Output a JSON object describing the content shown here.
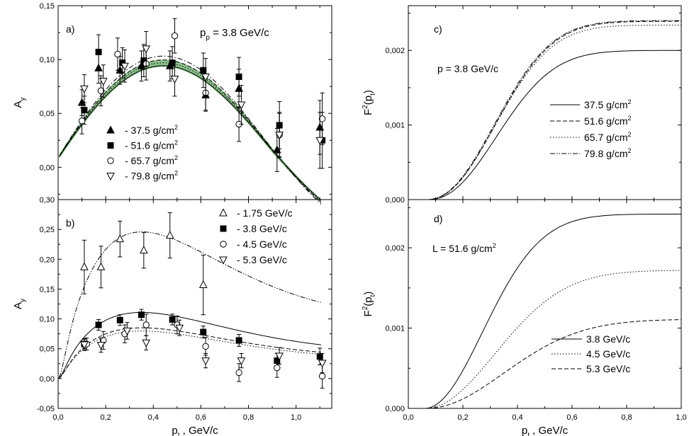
{
  "chart_data": [
    {
      "id": "a",
      "type": "scatter",
      "panel_label": "a)",
      "annotation": "p",
      "annotation_sub": "p",
      "annotation_tail": " = 3.8 GeV/c",
      "ylabel": "A",
      "ylabel_sub": "y",
      "xlim": [
        0.0,
        1.15
      ],
      "ylim": [
        -0.03,
        0.15
      ],
      "yticks": [
        0.0,
        0.05,
        0.1,
        0.15
      ],
      "ytick_labels": [
        "0,00",
        "0,05",
        "0,10",
        "0,15"
      ],
      "legend_position": "bottom-left",
      "series": [
        {
          "name": "- 37.5 g/cm",
          "name_sup": "2",
          "marker": "triangle-up-filled",
          "x": [
            0.1,
            0.17,
            0.26,
            0.35,
            0.47,
            0.62,
            0.76,
            0.92,
            1.1
          ],
          "y": [
            0.06,
            0.092,
            0.09,
            0.094,
            0.094,
            0.067,
            0.073,
            0.016,
            0.037
          ],
          "err": [
            0.012,
            0.014,
            0.013,
            0.014,
            0.014,
            0.015,
            0.018,
            0.02,
            0.025
          ]
        },
        {
          "name": "- 51.6 g/cm",
          "name_sup": "2",
          "marker": "square-filled",
          "x": [
            0.11,
            0.17,
            0.27,
            0.36,
            0.48,
            0.61,
            0.76,
            0.93,
            1.11
          ],
          "y": [
            0.053,
            0.107,
            0.097,
            0.099,
            0.097,
            0.09,
            0.084,
            0.039,
            0.025
          ],
          "err": [
            0.013,
            0.016,
            0.014,
            0.015,
            0.015,
            0.016,
            0.018,
            0.022,
            0.026
          ]
        },
        {
          "name": "- 65.7 g/cm",
          "name_sup": "2",
          "marker": "circle-open",
          "x": [
            0.1,
            0.18,
            0.25,
            0.37,
            0.49,
            0.62,
            0.76,
            0.93,
            1.11
          ],
          "y": [
            0.043,
            0.071,
            0.105,
            0.096,
            0.122,
            0.069,
            0.04,
            0.03,
            0.045
          ],
          "err": [
            0.012,
            0.014,
            0.015,
            0.015,
            0.016,
            0.016,
            0.016,
            0.02,
            0.024
          ]
        },
        {
          "name": "- 79.8 g/cm",
          "name_sup": "2",
          "marker": "triangle-down-open",
          "x": [
            0.11,
            0.19,
            0.28,
            0.37,
            0.49,
            0.62,
            0.77,
            0.93,
            1.1
          ],
          "y": [
            0.073,
            0.08,
            0.094,
            0.11,
            0.082,
            0.084,
            0.058,
            0.03,
            0.025
          ],
          "err": [
            0.013,
            0.015,
            0.015,
            0.016,
            0.016,
            0.017,
            0.018,
            0.021,
            0.026
          ]
        }
      ],
      "curves": [
        {
          "style": "solid",
          "amp": 0.1
        },
        {
          "style": "dashed",
          "amp": 0.106
        },
        {
          "style": "dotted",
          "amp": 0.103
        },
        {
          "style": "dashdot",
          "amp": 0.11
        }
      ],
      "band_color": "#2e8b2e"
    },
    {
      "id": "b",
      "type": "scatter",
      "panel_label": "b)",
      "xlabel": "p",
      "xlabel_sub": "t",
      "xlabel_tail": " , GeV/c",
      "ylabel": "A",
      "ylabel_sub": "y",
      "xlim": [
        0.0,
        1.15
      ],
      "ylim": [
        -0.05,
        0.3
      ],
      "xticks": [
        0.0,
        0.2,
        0.4,
        0.6,
        0.8,
        1.0
      ],
      "xtick_labels": [
        "0,0",
        "0,2",
        "0,4",
        "0,6",
        "0,8",
        "1,0"
      ],
      "yticks": [
        -0.05,
        0.0,
        0.05,
        0.1,
        0.15,
        0.2,
        0.25,
        0.3
      ],
      "ytick_labels": [
        "-0,05",
        "0,00",
        "0,05",
        "0,10",
        "0,15",
        "0,20",
        "0,25",
        "0,30"
      ],
      "legend_position": "top-right",
      "series": [
        {
          "name": "- 1.75 GeV/c",
          "marker": "triangle-up-open",
          "x": [
            0.11,
            0.18,
            0.26,
            0.36,
            0.47,
            0.61
          ],
          "y": [
            0.187,
            0.187,
            0.234,
            0.215,
            0.24,
            0.157
          ],
          "err": [
            0.045,
            0.035,
            0.03,
            0.03,
            0.038,
            0.05
          ]
        },
        {
          "name": "- 3.8  GeV/c",
          "marker": "square-filled",
          "x": [
            0.11,
            0.17,
            0.26,
            0.35,
            0.48,
            0.61,
            0.76,
            0.92,
            1.1
          ],
          "y": [
            0.058,
            0.09,
            0.098,
            0.107,
            0.099,
            0.078,
            0.064,
            0.03,
            0.037
          ],
          "err": [
            0.008,
            0.009,
            0.009,
            0.009,
            0.009,
            0.01,
            0.01,
            0.012,
            0.014
          ]
        },
        {
          "name": "- 4.5  GeV/c",
          "marker": "circle-open",
          "x": [
            0.12,
            0.19,
            0.28,
            0.37,
            0.5,
            0.62,
            0.76,
            0.92,
            1.11
          ],
          "y": [
            0.058,
            0.064,
            0.075,
            0.09,
            0.09,
            0.054,
            0.01,
            0.018,
            0.004
          ],
          "err": [
            0.01,
            0.015,
            0.015,
            0.018,
            0.015,
            0.015,
            0.015,
            0.016,
            0.02
          ]
        },
        {
          "name": "- 5.3  GeV/c",
          "marker": "triangle-down-open",
          "x": [
            0.11,
            0.18,
            0.29,
            0.37,
            0.51,
            0.62,
            0.77,
            0.93,
            1.11
          ],
          "y": [
            0.057,
            0.056,
            0.08,
            0.06,
            0.085,
            0.03,
            0.03,
            0.038,
            0.026
          ],
          "err": [
            0.01,
            0.012,
            0.014,
            0.012,
            0.013,
            0.012,
            0.012,
            0.014,
            0.016
          ]
        }
      ],
      "curves": [
        {
          "style": "dashdotdot",
          "amp": 0.237,
          "tail": 0.058
        },
        {
          "style": "solid",
          "amp": 0.107,
          "tail": 0.025
        },
        {
          "style": "dashed",
          "amp": 0.082,
          "tail": 0.02
        },
        {
          "style": "dotted",
          "amp": 0.077,
          "tail": 0.018
        }
      ]
    },
    {
      "id": "c",
      "type": "line",
      "panel_label": "c)",
      "annotation": "p = 3.8 GeV/c",
      "ylabel": "F",
      "ylabel_sup": "2",
      "ylabel_tail": "(p",
      "ylabel_sub": "t",
      "ylabel_close": ")",
      "xlim": [
        0.0,
        1.0
      ],
      "ylim": [
        0.0,
        0.0026
      ],
      "yticks": [
        0.0,
        0.001,
        0.002
      ],
      "ytick_labels": [
        "0,000",
        "0,001",
        "0,002"
      ],
      "legend_position": "center-right",
      "series": [
        {
          "name": "37.5 g/cm",
          "name_sup": "2",
          "style": "solid",
          "plateau": 0.002
        },
        {
          "name": "51.6 g/cm",
          "name_sup": "2",
          "style": "dashed",
          "plateau": 0.00239
        },
        {
          "name": "65.7 g/cm",
          "name_sup": "2",
          "style": "dotted",
          "plateau": 0.00234
        },
        {
          "name": "79.8 g/cm",
          "name_sup": "2",
          "style": "dashdotdot",
          "plateau": 0.0024
        }
      ]
    },
    {
      "id": "d",
      "type": "line",
      "panel_label": "d)",
      "annotation": "L = 51.6 g/cm",
      "annotation_sup": "2",
      "xlabel": "p",
      "xlabel_sub": "t",
      "xlabel_tail": " , GeV/c",
      "ylabel": "F",
      "ylabel_sup": "2",
      "ylabel_tail": "(p",
      "ylabel_sub": "t",
      "ylabel_close": ")",
      "xlim": [
        0.0,
        1.0
      ],
      "ylim": [
        0.0,
        0.0026
      ],
      "xticks": [
        0.0,
        0.2,
        0.4,
        0.6,
        0.8,
        1.0
      ],
      "xtick_labels": [
        "0,0",
        "0,2",
        "0,4",
        "0,6",
        "0,8",
        "1,0"
      ],
      "yticks": [
        0.0,
        0.001,
        0.002
      ],
      "ytick_labels": [
        "0,000",
        "0,001",
        "0,002"
      ],
      "legend_position": "bottom-right",
      "series": [
        {
          "name": "3.8 GeV/c",
          "style": "solid",
          "plateau": 0.00242
        },
        {
          "name": "4.5 GeV/c",
          "style": "dotted",
          "plateau": 0.00172
        },
        {
          "name": "5.3 GeV/c",
          "style": "dashed",
          "plateau": 0.00111
        }
      ]
    }
  ]
}
